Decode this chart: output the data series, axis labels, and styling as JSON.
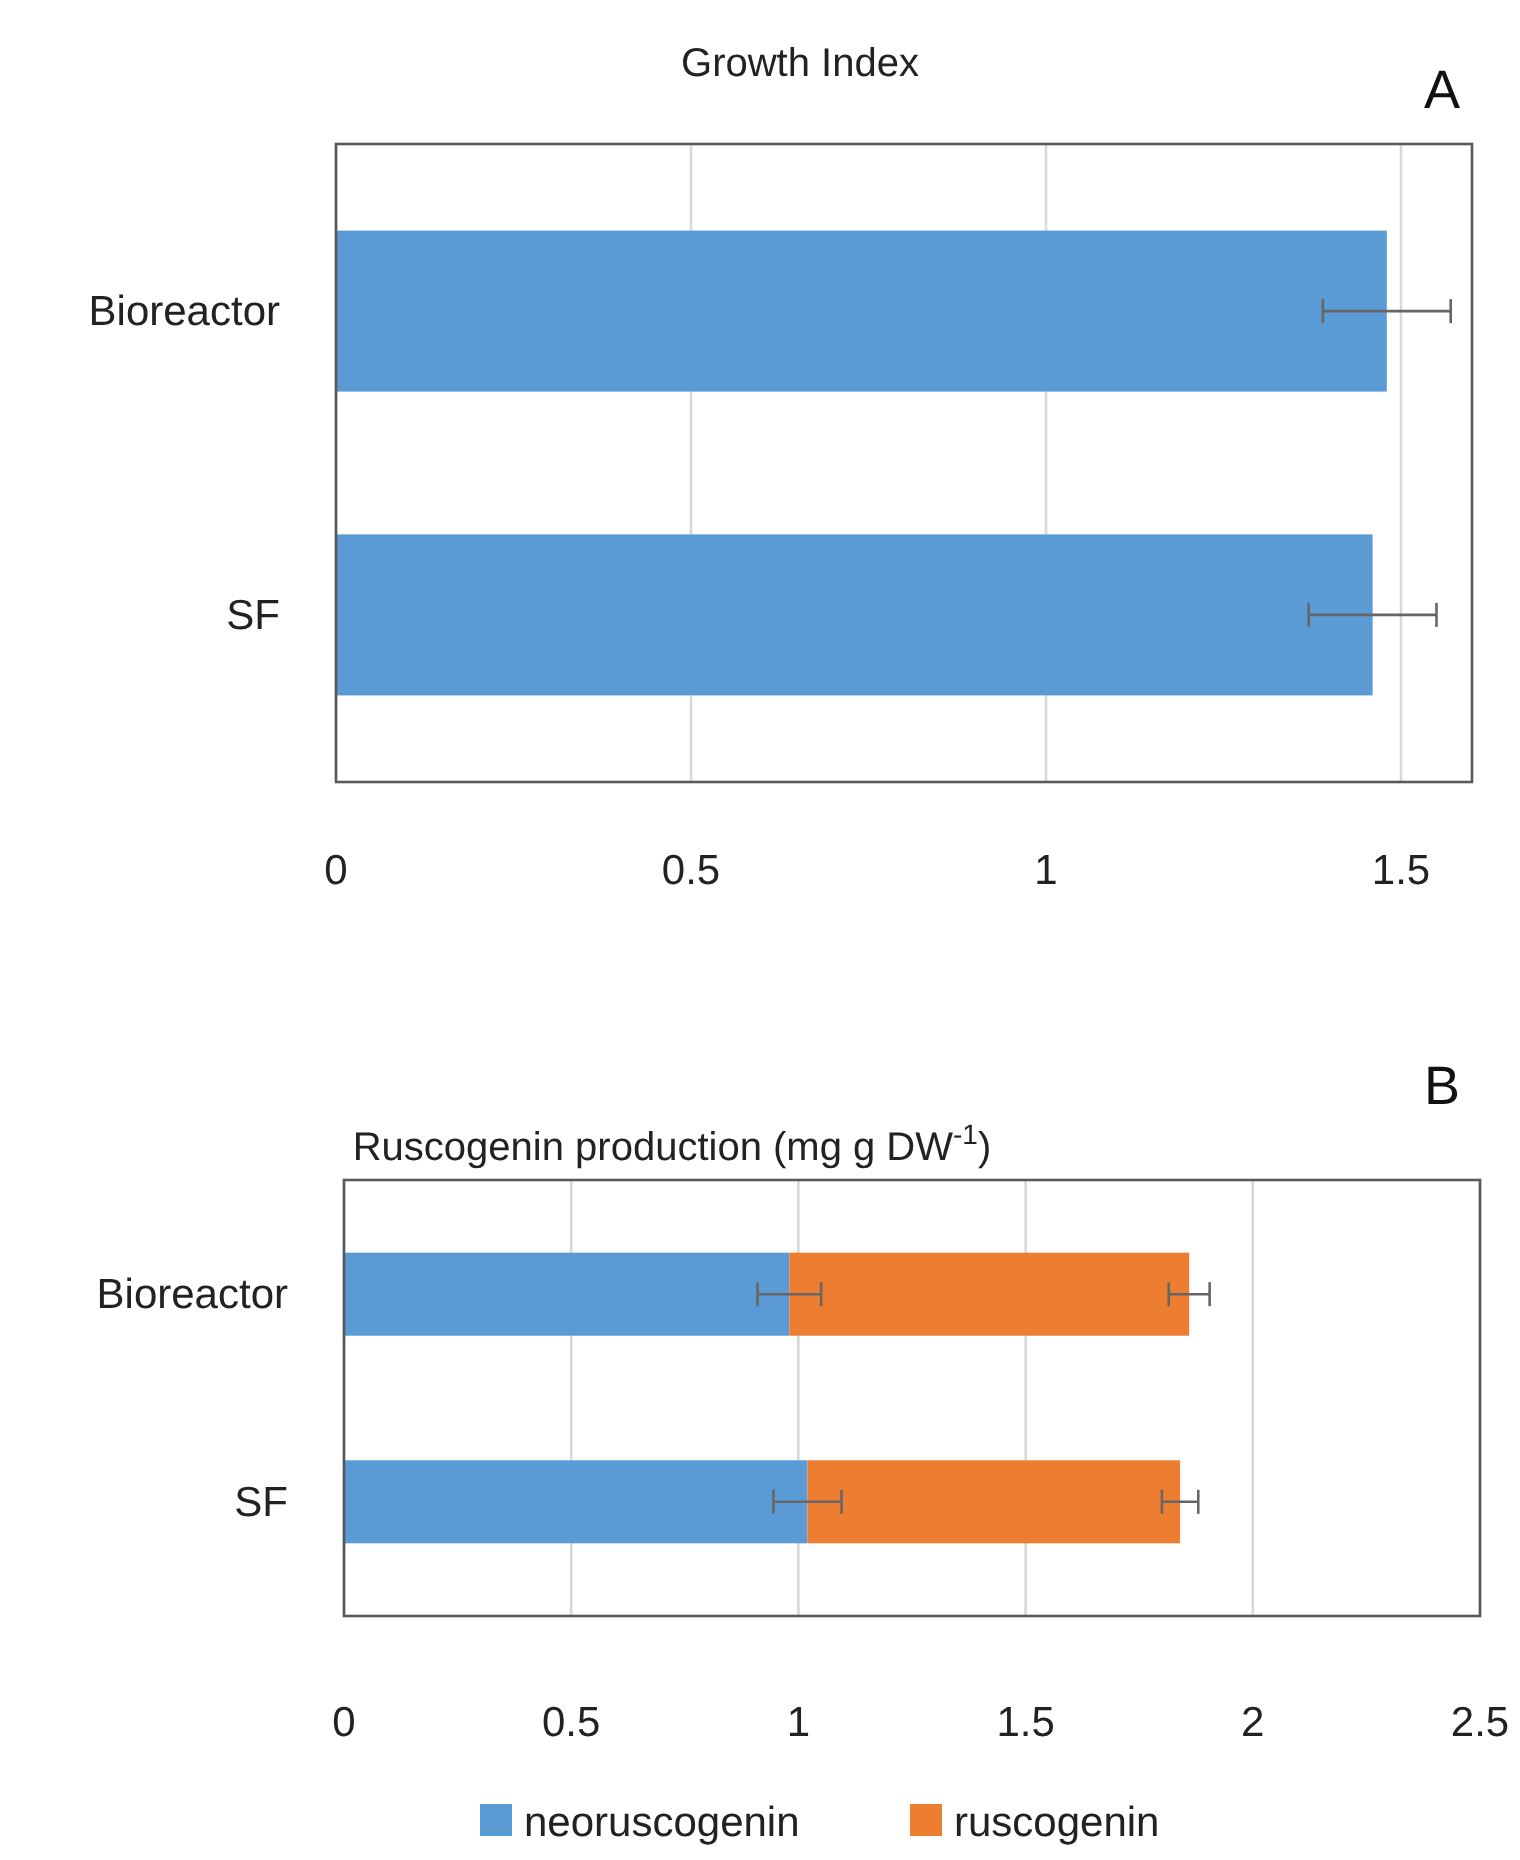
{
  "chart_data": [
    {
      "type": "bar",
      "orientation": "horizontal",
      "title": "Growth Index",
      "annotations": [
        "A"
      ],
      "categories": [
        "Bioreactor",
        "SF"
      ],
      "series": [
        {
          "color": "#5b9bd5",
          "values": [
            1.48,
            1.46
          ],
          "errors": [
            0.09,
            0.09
          ]
        }
      ],
      "xlim": [
        0,
        1.6
      ],
      "xticks": [
        0,
        0.5,
        1,
        1.5
      ],
      "grid": "x"
    },
    {
      "type": "bar",
      "orientation": "horizontal",
      "stacked": true,
      "title": "Ruscogenin production (mg g DW$^{-1}$)",
      "annotations": [
        "B"
      ],
      "categories": [
        "Bioreactor",
        "SF"
      ],
      "series": [
        {
          "name": "neoruscogenin",
          "color": "#5b9bd5",
          "values": [
            0.98,
            1.02
          ],
          "errors": [
            0.07,
            0.075
          ]
        },
        {
          "name": "ruscogenin",
          "color": "#ed7d31",
          "values": [
            0.88,
            0.82
          ],
          "errors": [
            0.045,
            0.04
          ]
        }
      ],
      "xlim": [
        0,
        2.5
      ],
      "xticks": [
        0,
        0.5,
        1,
        1.5,
        2,
        2.5
      ],
      "grid": "x",
      "legend": "bottom"
    }
  ]
}
